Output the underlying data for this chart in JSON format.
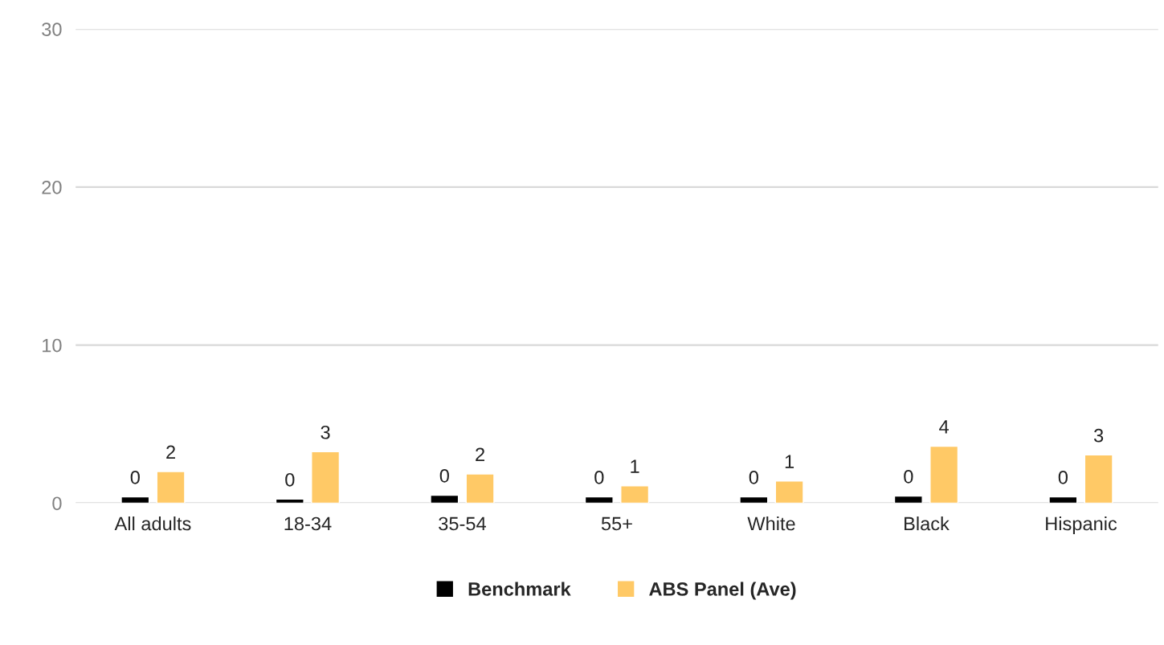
{
  "chart_data": {
    "type": "bar",
    "categories": [
      "All adults",
      "18-34",
      "35-54",
      "55+",
      "White",
      "Black",
      "Hispanic"
    ],
    "series": [
      {
        "name": "Benchmark",
        "color": "#000000",
        "values": [
          0.4,
          0.25,
          0.5,
          0.4,
          0.4,
          0.45,
          0.4
        ],
        "value_labels": [
          "0",
          "0",
          "0",
          "0",
          "0",
          "0",
          "0"
        ]
      },
      {
        "name": "ABS Panel (Ave)",
        "color": "#ffc966",
        "values": [
          2.0,
          3.25,
          1.85,
          1.1,
          1.4,
          3.6,
          3.05
        ],
        "value_labels": [
          "2",
          "3",
          "2",
          "1",
          "1",
          "4",
          "3"
        ]
      }
    ],
    "ylim": [
      0,
      30
    ],
    "yticks": [
      0,
      10,
      20,
      30
    ],
    "grid": "y",
    "legend": "bottom"
  }
}
